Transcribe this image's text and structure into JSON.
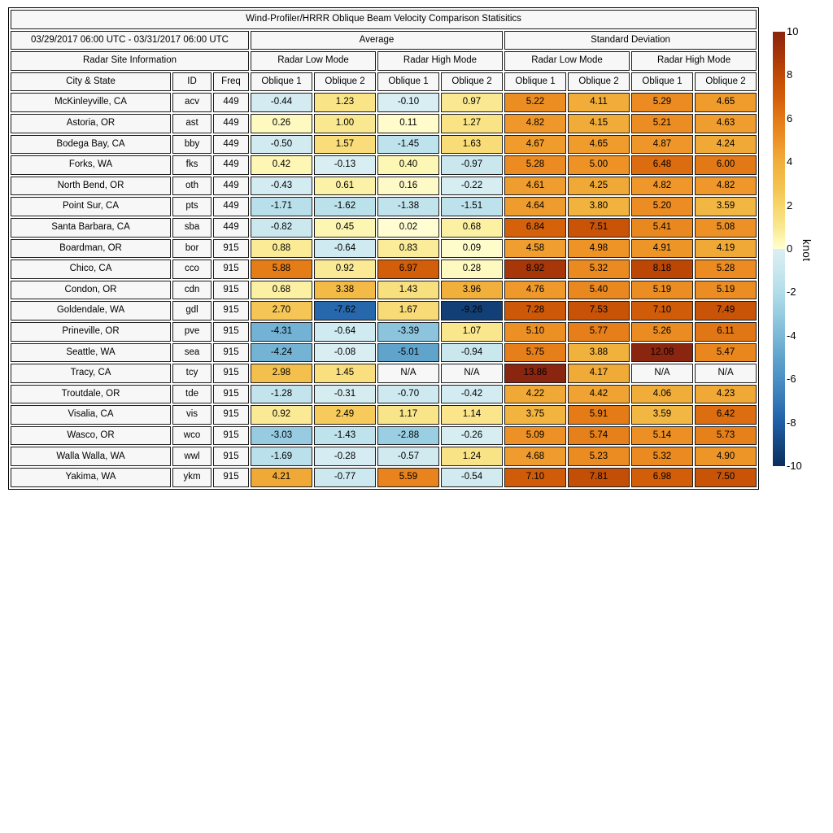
{
  "title": "Wind-Profiler/HRRR Oblique Beam Velocity Comparison Statisitics",
  "header": {
    "date_range": "03/29/2017 06:00 UTC - 03/31/2017 06:00 UTC",
    "site_info_label": "Radar Site Information",
    "group_average": "Average",
    "group_std": "Standard Deviation",
    "mode_low": "Radar Low Mode",
    "mode_high": "Radar High Mode",
    "col_city": "City & State",
    "col_id": "ID",
    "col_freq": "Freq",
    "col_oblique1": "Oblique 1",
    "col_oblique2": "Oblique 2"
  },
  "colorbar": {
    "unit": "knot",
    "min": -10,
    "max": 10,
    "ticks": [
      10,
      8,
      6,
      4,
      2,
      0,
      -2,
      -4,
      -6,
      -8,
      -10
    ],
    "colormap": [
      {
        "v": -10,
        "c": "#0b2d5e"
      },
      {
        "v": -9,
        "c": "#15467f"
      },
      {
        "v": -8,
        "c": "#1e5ea6"
      },
      {
        "v": -7,
        "c": "#3579b6"
      },
      {
        "v": -6,
        "c": "#4a90c4"
      },
      {
        "v": -5,
        "c": "#60a4cc"
      },
      {
        "v": -4,
        "c": "#7cb8d7"
      },
      {
        "v": -3,
        "c": "#97cce1"
      },
      {
        "v": -2,
        "c": "#b2dde9"
      },
      {
        "v": -1,
        "c": "#c9e7ee"
      },
      {
        "v": -0.001,
        "c": "#daeff3"
      },
      {
        "v": 0.001,
        "c": "#fffdd2"
      },
      {
        "v": 0.5,
        "c": "#fdf5ae"
      },
      {
        "v": 1,
        "c": "#fae890"
      },
      {
        "v": 2,
        "c": "#f7d569"
      },
      {
        "v": 3,
        "c": "#f4c04c"
      },
      {
        "v": 4,
        "c": "#f1af3b"
      },
      {
        "v": 5,
        "c": "#ee9226"
      },
      {
        "v": 6,
        "c": "#e37916"
      },
      {
        "v": 7,
        "c": "#d25d09"
      },
      {
        "v": 8,
        "c": "#c04a05"
      },
      {
        "v": 9,
        "c": "#a53408"
      },
      {
        "v": 10,
        "c": "#8a2510"
      }
    ]
  },
  "chart_data": {
    "type": "heatmap",
    "title": "Wind-Profiler/HRRR Oblique Beam Velocity Comparison Statisitics",
    "date_range": "03/29/2017 06:00 UTC - 03/31/2017 06:00 UTC",
    "unit": "knot",
    "colorbar_range": [
      -10,
      10
    ],
    "legend_position": "right",
    "na_text": "N/A",
    "value_columns": [
      {
        "group": "Average",
        "mode": "Radar Low Mode",
        "beam": "Oblique 1"
      },
      {
        "group": "Average",
        "mode": "Radar Low Mode",
        "beam": "Oblique 2"
      },
      {
        "group": "Average",
        "mode": "Radar High Mode",
        "beam": "Oblique 1"
      },
      {
        "group": "Average",
        "mode": "Radar High Mode",
        "beam": "Oblique 2"
      },
      {
        "group": "Standard Deviation",
        "mode": "Radar Low Mode",
        "beam": "Oblique 1"
      },
      {
        "group": "Standard Deviation",
        "mode": "Radar Low Mode",
        "beam": "Oblique 2"
      },
      {
        "group": "Standard Deviation",
        "mode": "Radar High Mode",
        "beam": "Oblique 1"
      },
      {
        "group": "Standard Deviation",
        "mode": "Radar High Mode",
        "beam": "Oblique 2"
      }
    ],
    "rows": [
      {
        "city": "McKinleyville, CA",
        "id": "acv",
        "freq": "449",
        "values": [
          -0.44,
          1.23,
          -0.1,
          0.97,
          5.22,
          4.11,
          5.29,
          4.65
        ]
      },
      {
        "city": "Astoria, OR",
        "id": "ast",
        "freq": "449",
        "values": [
          0.26,
          1.0,
          0.11,
          1.27,
          4.82,
          4.15,
          5.21,
          4.63
        ]
      },
      {
        "city": "Bodega Bay, CA",
        "id": "bby",
        "freq": "449",
        "values": [
          -0.5,
          1.57,
          -1.45,
          1.63,
          4.67,
          4.65,
          4.87,
          4.24
        ]
      },
      {
        "city": "Forks, WA",
        "id": "fks",
        "freq": "449",
        "values": [
          0.42,
          -0.13,
          0.4,
          -0.97,
          5.28,
          5.0,
          6.48,
          6.0
        ]
      },
      {
        "city": "North Bend, OR",
        "id": "oth",
        "freq": "449",
        "values": [
          -0.43,
          0.61,
          0.16,
          -0.22,
          4.61,
          4.25,
          4.82,
          4.82
        ]
      },
      {
        "city": "Point Sur, CA",
        "id": "pts",
        "freq": "449",
        "values": [
          -1.71,
          -1.62,
          -1.38,
          -1.51,
          4.64,
          3.8,
          5.2,
          3.59
        ]
      },
      {
        "city": "Santa Barbara, CA",
        "id": "sba",
        "freq": "449",
        "values": [
          -0.82,
          0.45,
          0.02,
          0.68,
          6.84,
          7.51,
          5.41,
          5.08
        ]
      },
      {
        "city": "Boardman, OR",
        "id": "bor",
        "freq": "915",
        "values": [
          0.88,
          -0.64,
          0.83,
          0.09,
          4.58,
          4.98,
          4.91,
          4.19
        ]
      },
      {
        "city": "Chico, CA",
        "id": "cco",
        "freq": "915",
        "values": [
          5.88,
          0.92,
          6.97,
          0.28,
          8.92,
          5.32,
          8.18,
          5.28
        ]
      },
      {
        "city": "Condon, OR",
        "id": "cdn",
        "freq": "915",
        "values": [
          0.68,
          3.38,
          1.43,
          3.96,
          4.76,
          5.4,
          5.19,
          5.19
        ]
      },
      {
        "city": "Goldendale, WA",
        "id": "gdl",
        "freq": "915",
        "values": [
          2.7,
          -7.62,
          1.67,
          -9.26,
          7.28,
          7.53,
          7.1,
          7.49
        ]
      },
      {
        "city": "Prineville, OR",
        "id": "pve",
        "freq": "915",
        "values": [
          -4.31,
          -0.64,
          -3.39,
          1.07,
          5.1,
          5.77,
          5.26,
          6.11
        ]
      },
      {
        "city": "Seattle, WA",
        "id": "sea",
        "freq": "915",
        "values": [
          -4.24,
          -0.08,
          -5.01,
          -0.94,
          5.75,
          3.88,
          12.08,
          5.47
        ]
      },
      {
        "city": "Tracy, CA",
        "id": "tcy",
        "freq": "915",
        "values": [
          2.98,
          1.45,
          null,
          null,
          13.86,
          4.17,
          null,
          null
        ]
      },
      {
        "city": "Troutdale, OR",
        "id": "tde",
        "freq": "915",
        "values": [
          -1.28,
          -0.31,
          -0.7,
          -0.42,
          4.22,
          4.42,
          4.06,
          4.23
        ]
      },
      {
        "city": "Visalia, CA",
        "id": "vis",
        "freq": "915",
        "values": [
          0.92,
          2.49,
          1.17,
          1.14,
          3.75,
          5.91,
          3.59,
          6.42
        ]
      },
      {
        "city": "Wasco, OR",
        "id": "wco",
        "freq": "915",
        "values": [
          -3.03,
          -1.43,
          -2.88,
          -0.26,
          5.09,
          5.74,
          5.14,
          5.73
        ]
      },
      {
        "city": "Walla Walla, WA",
        "id": "wwl",
        "freq": "915",
        "values": [
          -1.69,
          -0.28,
          -0.57,
          1.24,
          4.68,
          5.23,
          5.32,
          4.9
        ]
      },
      {
        "city": "Yakima, WA",
        "id": "ykm",
        "freq": "915",
        "values": [
          4.21,
          -0.77,
          5.59,
          -0.54,
          7.1,
          7.81,
          6.98,
          7.5
        ]
      }
    ]
  }
}
